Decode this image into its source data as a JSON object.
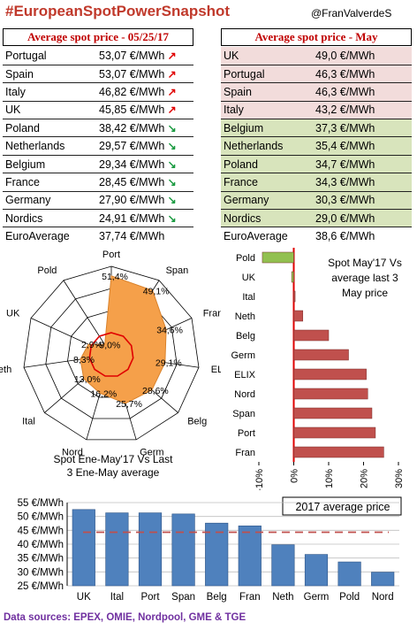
{
  "header": {
    "title": "#EuropeanSpotPowerSnapshot",
    "handle": "@FranValverdeS"
  },
  "left_table": {
    "heading": "Average spot price - 05/25/17",
    "rows": [
      {
        "country": "Portugal",
        "value": "53,07 €/MWh",
        "trend": "up"
      },
      {
        "country": "Spain",
        "value": "53,07 €/MWh",
        "trend": "up"
      },
      {
        "country": "Italy",
        "value": "46,82 €/MWh",
        "trend": "up"
      },
      {
        "country": "UK",
        "value": "45,85 €/MWh",
        "trend": "up"
      },
      {
        "country": "Poland",
        "value": "38,42 €/MWh",
        "trend": "down"
      },
      {
        "country": "Netherlands",
        "value": "29,57 €/MWh",
        "trend": "down"
      },
      {
        "country": "Belgium",
        "value": "29,34 €/MWh",
        "trend": "down"
      },
      {
        "country": "France",
        "value": "28,45 €/MWh",
        "trend": "down"
      },
      {
        "country": "Germany",
        "value": "27,90 €/MWh",
        "trend": "down"
      },
      {
        "country": "Nordics",
        "value": "24,91 €/MWh",
        "trend": "down"
      }
    ],
    "average": {
      "country": "EuroAverage",
      "value": "37,74 €/MWh"
    }
  },
  "right_table": {
    "heading": "Average spot price - May",
    "rows": [
      {
        "country": "UK",
        "value": "49,0 €/MWh",
        "tone": "pink"
      },
      {
        "country": "Portugal",
        "value": "46,3 €/MWh",
        "tone": "pink"
      },
      {
        "country": "Spain",
        "value": "46,3 €/MWh",
        "tone": "pink"
      },
      {
        "country": "Italy",
        "value": "43,2 €/MWh",
        "tone": "pink"
      },
      {
        "country": "Belgium",
        "value": "37,3 €/MWh",
        "tone": "green"
      },
      {
        "country": "Netherlands",
        "value": "35,4 €/MWh",
        "tone": "green"
      },
      {
        "country": "Poland",
        "value": "34,7 €/MWh",
        "tone": "green"
      },
      {
        "country": "France",
        "value": "34,3 €/MWh",
        "tone": "green"
      },
      {
        "country": "Germany",
        "value": "30,3 €/MWh",
        "tone": "green"
      },
      {
        "country": "Nordics",
        "value": "29,0 €/MWh",
        "tone": "green"
      }
    ],
    "average": {
      "country": "EuroAverage",
      "value": "38,6 €/MWh"
    }
  },
  "colors": {
    "title": "#c0392b",
    "up_arrow": "#e00000",
    "down_arrow": "#1a9a40",
    "pink_row": "#f2dcdb",
    "green_row": "#d8e4bc",
    "radar_fill": "#f5a04a",
    "radar_ring": "#e00000",
    "hbar_red": "#c0504d",
    "hbar_green": "#92c050",
    "col_blue": "#4f81bd",
    "avg_line": "#c0504d",
    "sources": "#7030a0"
  },
  "chart_data": [
    {
      "type": "radar",
      "title": "Spot Ene-May'17 Vs Last 3 Ene-May average",
      "categories": [
        "Port",
        "Span",
        "Fran",
        "ELIX",
        "Belg",
        "Germ",
        "Nord",
        "Ital",
        "Neth",
        "UK",
        "Pold"
      ],
      "values": [
        51.4,
        49.1,
        34.6,
        29.1,
        28.6,
        25.7,
        16.2,
        13.0,
        8.3,
        2.9,
        -9.0
      ],
      "labels": [
        "51,4%",
        "49,1%",
        "34,6%",
        "29,1%",
        "28,6%",
        "25,7%",
        "16,2%",
        "13,0%",
        "8,3%",
        "2,9%",
        "-9,0%"
      ],
      "unit": "%"
    },
    {
      "type": "bar",
      "orientation": "horizontal",
      "title": "Spot May'17 Vs average last 3 May price",
      "categories": [
        "Pold",
        "UK",
        "Ital",
        "Neth",
        "Belg",
        "Germ",
        "ELIX",
        "Nord",
        "Span",
        "Port",
        "Fran"
      ],
      "values": [
        -9.0,
        -0.6,
        0.4,
        2.6,
        10.0,
        15.7,
        20.8,
        21.2,
        22.4,
        23.4,
        25.8
      ],
      "xlim": [
        -10,
        30
      ],
      "ticks": [
        "-10%",
        "0%",
        "10%",
        "20%",
        "30%"
      ],
      "unit": "%"
    },
    {
      "type": "bar",
      "title": "2017 average price",
      "categories": [
        "UK",
        "Ital",
        "Port",
        "Span",
        "Belg",
        "Fran",
        "Neth",
        "Germ",
        "Pold",
        "Nord"
      ],
      "values": [
        52.5,
        51.3,
        51.3,
        50.9,
        47.6,
        46.6,
        39.8,
        36.3,
        33.6,
        29.9
      ],
      "average_line": 44.3,
      "ylim": [
        25,
        55
      ],
      "ticks": [
        "25 €/MWh",
        "30 €/MWh",
        "35 €/MWh",
        "40 €/MWh",
        "45 €/MWh",
        "50 €/MWh",
        "55 €/MWh"
      ],
      "unit": "€/MWh"
    }
  ],
  "footer": {
    "sources": "Data sources:  EPEX, OMIE, Nordpool, GME & TGE"
  }
}
